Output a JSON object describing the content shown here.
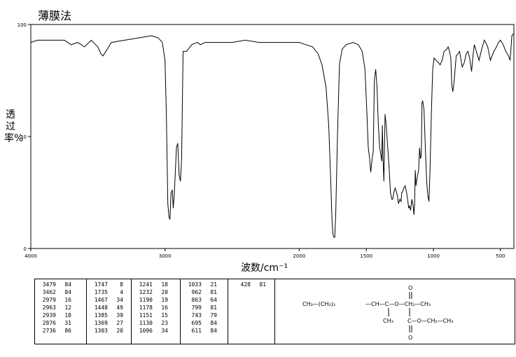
{
  "title": "薄膜法",
  "chart_data": {
    "type": "line",
    "title": "薄膜法",
    "xlabel": "波数/cm⁻¹",
    "ylabel": "透过率%",
    "xlim": [
      4000,
      400
    ],
    "ylim": [
      0,
      100
    ],
    "xticks": [
      4000,
      3000,
      2000,
      1500,
      1000,
      500
    ],
    "yticks": [
      0,
      50,
      100
    ],
    "series": [
      {
        "x": [
          4000,
          3950,
          3850,
          3750,
          3700,
          3650,
          3600,
          3550,
          3500,
          3479,
          3462,
          3430,
          3400,
          3300,
          3200,
          3100,
          3050,
          3020,
          3000,
          2990,
          2979,
          2970,
          2963,
          2955,
          2945,
          2939,
          2930,
          2915,
          2905,
          2895,
          2885,
          2876,
          2865,
          2840,
          2800,
          2760,
          2736,
          2700,
          2600,
          2500,
          2400,
          2300,
          2200,
          2100,
          2000,
          1950,
          1900,
          1860,
          1830,
          1800,
          1780,
          1765,
          1755,
          1747,
          1740,
          1735,
          1728,
          1715,
          1700,
          1680,
          1650,
          1600,
          1560,
          1530,
          1510,
          1495,
          1485,
          1475,
          1467,
          1460,
          1452,
          1448,
          1440,
          1430,
          1420,
          1410,
          1400,
          1392,
          1385,
          1380,
          1375,
          1369,
          1360,
          1350,
          1340,
          1330,
          1320,
          1310,
          1303,
          1295,
          1285,
          1270,
          1260,
          1250,
          1241,
          1236,
          1232,
          1220,
          1210,
          1200,
          1190,
          1184,
          1178,
          1170,
          1160,
          1151,
          1145,
          1140,
          1135,
          1130,
          1120,
          1110,
          1103,
          1096,
          1090,
          1085,
          1080,
          1070,
          1060,
          1050,
          1040,
          1033,
          1025,
          1015,
          1005,
          995,
          980,
          962,
          950,
          935,
          920,
          900,
          890,
          880,
          870,
          863,
          855,
          845,
          830,
          815,
          805,
          799,
          785,
          770,
          755,
          743,
          730,
          715,
          705,
          695,
          680,
          660,
          640,
          620,
          611,
          595,
          575,
          550,
          530,
          515,
          500,
          480,
          460,
          440,
          428,
          415,
          400
        ],
        "y": [
          92,
          93,
          93,
          93,
          91,
          92,
          90,
          93,
          90,
          87,
          86,
          89,
          92,
          93,
          94,
          95,
          94,
          92,
          84,
          60,
          20,
          14,
          13,
          25,
          26,
          18,
          25,
          45,
          47,
          33,
          30,
          40,
          88,
          88,
          91,
          92,
          91,
          92,
          92,
          92,
          93,
          92,
          92,
          92,
          92,
          91,
          90,
          87,
          82,
          72,
          55,
          30,
          12,
          6,
          5,
          5,
          15,
          50,
          82,
          89,
          91,
          92,
          91,
          88,
          80,
          60,
          45,
          40,
          34,
          38,
          42,
          43,
          75,
          80,
          72,
          55,
          45,
          42,
          39,
          55,
          40,
          30,
          60,
          54,
          45,
          36,
          25,
          22,
          22,
          25,
          27,
          24,
          20,
          22,
          21,
          25,
          25,
          27,
          28,
          25,
          21,
          18,
          19,
          17,
          22,
          19,
          15,
          20,
          35,
          28,
          32,
          35,
          45,
          40,
          42,
          65,
          66,
          62,
          45,
          30,
          23,
          21,
          35,
          60,
          80,
          85,
          84,
          83,
          82,
          84,
          88,
          89,
          90,
          88,
          85,
          73,
          70,
          75,
          86,
          87,
          88,
          86,
          81,
          83,
          87,
          88,
          85,
          79,
          86,
          91,
          88,
          84,
          89,
          93,
          92,
          90,
          84,
          88,
          90,
          92,
          93,
          91,
          88,
          86,
          84,
          95,
          96
        ]
      }
    ]
  },
  "peak_table": {
    "columns": [
      [
        [
          "3479",
          "84"
        ],
        [
          "3462",
          "84"
        ],
        [
          "2979",
          "16"
        ],
        [
          "2963",
          "12"
        ],
        [
          "2939",
          "18"
        ],
        [
          "2876",
          "31"
        ],
        [
          "2736",
          "86"
        ]
      ],
      [
        [
          "1747",
          "8"
        ],
        [
          "1735",
          "4"
        ],
        [
          "1467",
          "34"
        ],
        [
          "1448",
          "49"
        ],
        [
          "1385",
          "39"
        ],
        [
          "1369",
          "27"
        ],
        [
          "1303",
          "20"
        ]
      ],
      [
        [
          "1241",
          "18"
        ],
        [
          "1232",
          "20"
        ],
        [
          "1190",
          "19"
        ],
        [
          "1178",
          "16"
        ],
        [
          "1151",
          "15"
        ],
        [
          "1130",
          "23"
        ],
        [
          "1096",
          "34"
        ]
      ],
      [
        [
          "1033",
          "21"
        ],
        [
          "962",
          "81"
        ],
        [
          "863",
          "64"
        ],
        [
          "799",
          "81"
        ],
        [
          "743",
          "79"
        ],
        [
          "695",
          "84"
        ],
        [
          "611",
          "84"
        ]
      ],
      [
        [
          "428",
          "81"
        ]
      ]
    ]
  },
  "structure": {
    "line1_left": "CH₃—(CH₂)₂",
    "line1_mid": "—CH—C—O—CH₂—CH₃",
    "top_o": "O",
    "branch_ch3": "CH₃",
    "line2": "C—O—CH₂—CH₃",
    "bottom_o": "O"
  }
}
